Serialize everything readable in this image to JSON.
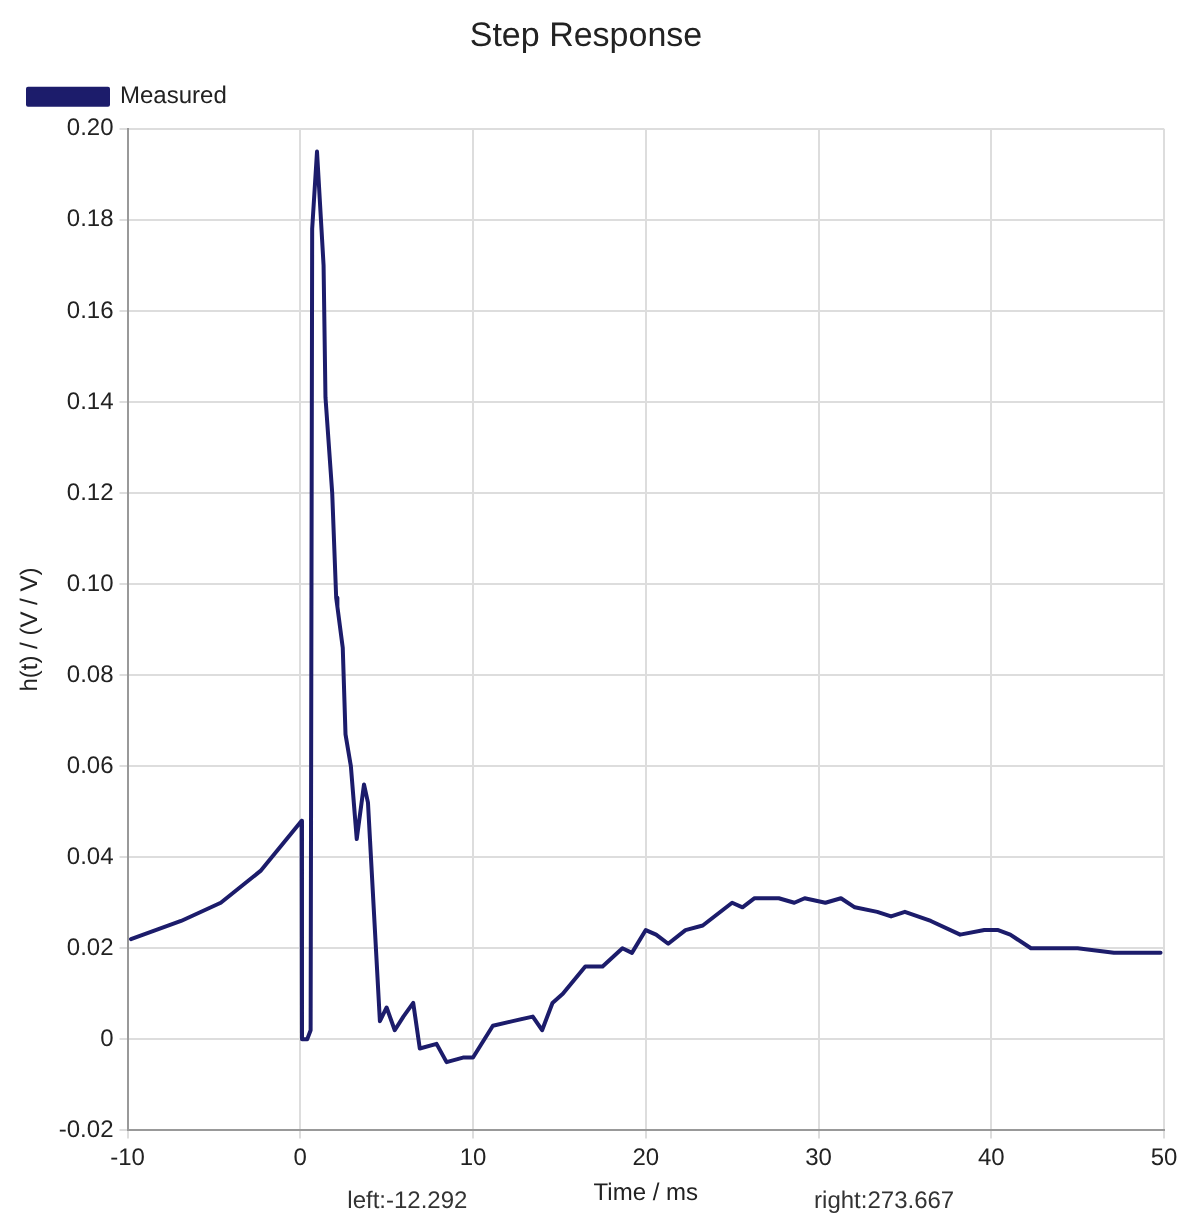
{
  "chart_data": {
    "type": "line",
    "title": "Step Response",
    "xlabel": "Time / ms",
    "ylabel": "h(t) / (V / V)",
    "annotations": [
      "left:-12.292",
      "right:273.667"
    ],
    "x": [
      -9.8,
      -6.9,
      -4.6,
      -2.3,
      0.08,
      0.1,
      0.4,
      0.6,
      0.69,
      0.97,
      1.35,
      1.46,
      1.85,
      2.08,
      2.15,
      2.46,
      2.62,
      2.93,
      3.27,
      3.69,
      3.92,
      4.61,
      5.0,
      5.47,
      5.97,
      6.54,
      6.92,
      7.89,
      8.47,
      9.42,
      10.0,
      11.15,
      12.3,
      13.46,
      14.0,
      14.6,
      15.2,
      16.5,
      17.5,
      18.65,
      19.2,
      20.0,
      20.6,
      21.3,
      22.3,
      23.3,
      25.0,
      25.6,
      26.3,
      27.7,
      28.6,
      29.2,
      30.4,
      31.3,
      32.1,
      33.4,
      34.2,
      35.0,
      36.5,
      38.2,
      39.6,
      40.4,
      41.1,
      42.3,
      43.1,
      45.0,
      47.1,
      48.0,
      48.6,
      49.8
    ],
    "series": [
      {
        "name": "Measured",
        "color": "#1c1c6b",
        "values": [
          0.022,
          0.026,
          0.03,
          0.037,
          0.048,
          0.0,
          0.0,
          0.002,
          0.178,
          0.195,
          0.17,
          0.141,
          0.12,
          0.097,
          0.095,
          0.086,
          0.067,
          0.06,
          0.044,
          0.056,
          0.052,
          0.004,
          0.007,
          0.002,
          0.005,
          0.008,
          -0.002,
          -0.001,
          -0.005,
          -0.004,
          -0.004,
          0.003,
          0.004,
          0.005,
          0.002,
          0.008,
          0.01,
          0.016,
          0.016,
          0.02,
          0.019,
          0.024,
          0.023,
          0.021,
          0.024,
          0.025,
          0.03,
          0.029,
          0.031,
          0.031,
          0.03,
          0.031,
          0.03,
          0.031,
          0.029,
          0.028,
          0.027,
          0.028,
          0.026,
          0.023,
          0.024,
          0.024,
          0.023,
          0.02,
          0.02,
          0.02,
          0.019,
          0.019,
          0.019,
          0.019
        ]
      }
    ],
    "xlim": [
      -10,
      50
    ],
    "xticks": [
      -10,
      0,
      10,
      20,
      30,
      40,
      50
    ],
    "ylim": [
      -0.02,
      0.2
    ],
    "yticks": [
      -0.02,
      0,
      0.02,
      0.04,
      0.06,
      0.08,
      {
        "value": 0.1,
        "label": "0.10"
      },
      0.12,
      0.14,
      0.16,
      0.18,
      {
        "value": 0.2,
        "label": "0.20"
      }
    ],
    "grid": true,
    "legend": "top left",
    "marker": "none",
    "line_style": "solid"
  }
}
